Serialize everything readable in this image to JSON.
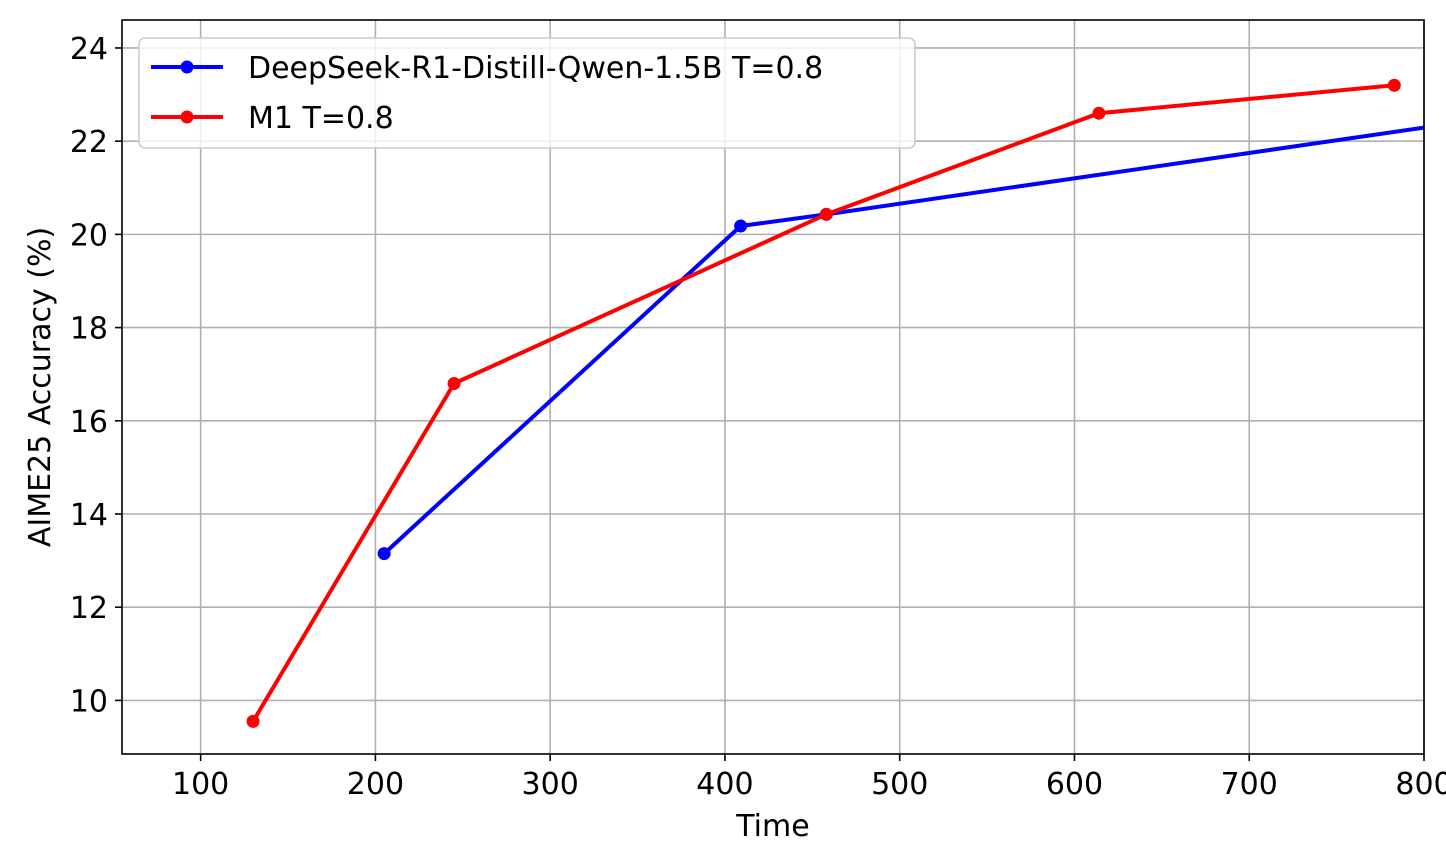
{
  "chart_data": {
    "type": "line",
    "title": "",
    "xlabel": "Time",
    "ylabel": "AIME25 Accuracy (%)",
    "xlim": [
      55,
      800
    ],
    "ylim": [
      8.85,
      24.6
    ],
    "xticks": [
      100,
      200,
      300,
      400,
      500,
      600,
      700,
      800
    ],
    "yticks": [
      10,
      12,
      14,
      16,
      18,
      20,
      22,
      24
    ],
    "grid": true,
    "legend_position": "top-left",
    "series": [
      {
        "name": "DeepSeek-R1-Distill-Qwen-1.5B T=0.8",
        "color": "#0000ff",
        "x": [
          205,
          409,
          458,
          820
        ],
        "y": [
          13.15,
          20.18,
          20.43,
          22.4
        ]
      },
      {
        "name": "M1 T=0.8",
        "color": "#ff0000",
        "x": [
          130,
          245,
          458,
          614,
          783
        ],
        "y": [
          9.55,
          16.8,
          20.43,
          22.6,
          23.2
        ]
      }
    ]
  }
}
